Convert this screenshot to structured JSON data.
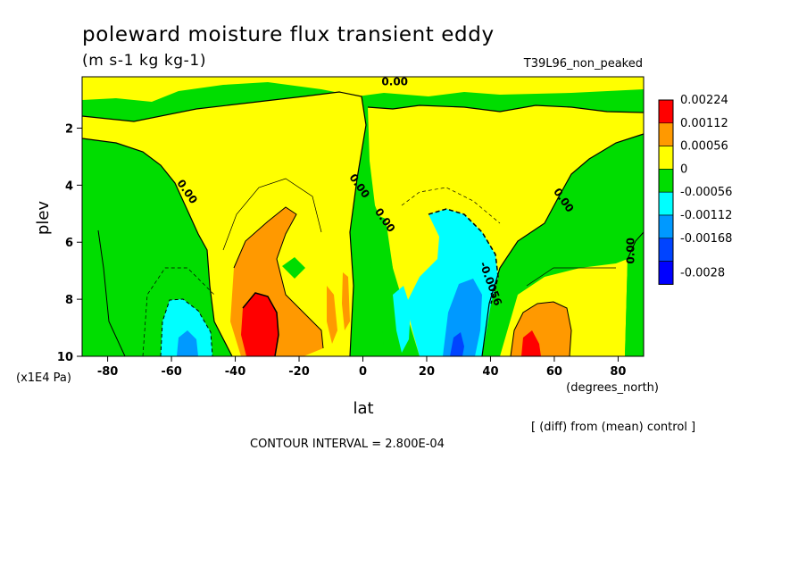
{
  "chart_data": {
    "type": "heatmap",
    "title": "poleward moisture flux transient eddy",
    "units": "(m s-1 kg kg-1)",
    "run_label": "T39L96_non_peaked",
    "xlabel": "lat",
    "xunits": "(degrees_north)",
    "ylabel": "plev",
    "yunits": "(x1E4 Pa)",
    "xlim": [
      -88,
      88
    ],
    "ylim": [
      10,
      0.2
    ],
    "x_ticks": [
      "-80",
      "-60",
      "-40",
      "-20",
      "0",
      "20",
      "40",
      "60",
      "80"
    ],
    "x_tick_values": [
      -80,
      -60,
      -40,
      -20,
      0,
      20,
      40,
      60,
      80
    ],
    "y_ticks": [
      "2",
      "4",
      "6",
      "8",
      "10"
    ],
    "y_tick_values": [
      2,
      4,
      6,
      8,
      10
    ],
    "contour_interval_text": "CONTOUR INTERVAL = 2.800E-04",
    "note": "[ (diff) from (mean) control ]",
    "contour_labels": [
      {
        "text": "0.00",
        "lat": 10,
        "plev": 0.5
      },
      {
        "text": "0.00",
        "lat": -56,
        "plev": 4.3
      },
      {
        "text": "0.00",
        "lat": -2,
        "plev": 4.1
      },
      {
        "text": "0.00",
        "lat": 6,
        "plev": 5.3
      },
      {
        "text": "-0.0056",
        "lat": 39,
        "plev": 7.5
      },
      {
        "text": "0.00",
        "lat": 62,
        "plev": 4.6
      },
      {
        "text": "0.00",
        "lat": 85,
        "plev": 6.3
      }
    ],
    "legend": {
      "placement": "right",
      "levels": [
        "0.00224",
        "0.00112",
        "0.00056",
        "0",
        "-0.00056",
        "-0.00112",
        "-0.00168",
        "-0.0028"
      ],
      "colors": [
        "#ff0000",
        "#ff9900",
        "#ffff00",
        "#00dd00",
        "#00ffff",
        "#0099ff",
        "#0044ff",
        "#0000ff"
      ]
    },
    "colors": {
      "positive_strong": "#ff0000",
      "positive_mid": "#ff9900",
      "positive_weak": "#ffff00",
      "negative_weak": "#00dd00",
      "negative_mid": "#00ffff",
      "negative_strong": "#0099ff",
      "negative_max": "#0044ff"
    }
  }
}
